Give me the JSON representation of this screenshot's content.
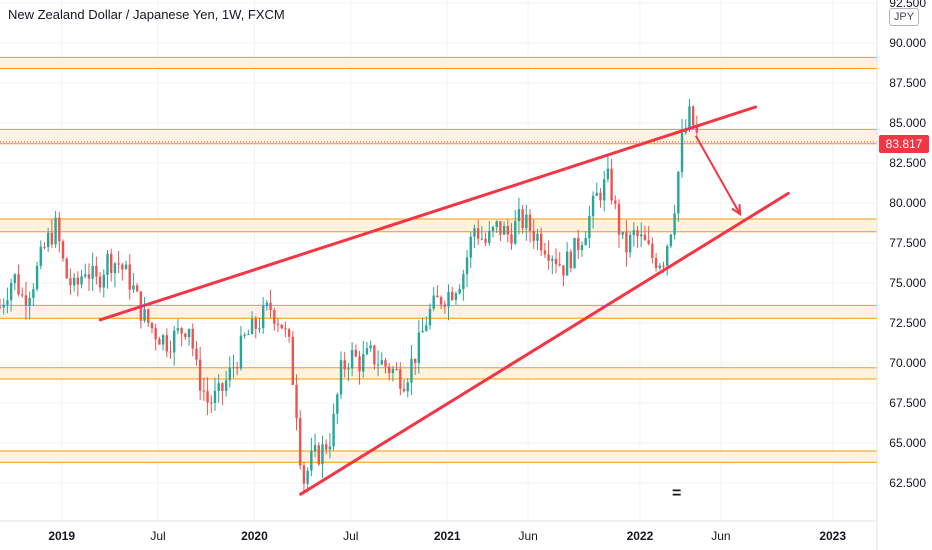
{
  "header": {
    "title": "New Zealand Dollar / Japanese Yen, 1W, FXCM",
    "currency": "JPY"
  },
  "colors": {
    "up": "#26a69a",
    "down": "#ef5350",
    "zone_fill": "#fff3e0",
    "zone_line": "#ff9800",
    "trendline": "#f23645",
    "price_tag": "#f23645",
    "axis_text": "#131722"
  },
  "annotations": {
    "bottom_marker": "="
  },
  "chart_data": {
    "type": "candlestick",
    "symbol": "NZDJPY",
    "interval": "1W",
    "ylim": [
      60.0,
      92.5
    ],
    "xlim": [
      2018.68,
      2023.23
    ],
    "y_ticks": [
      "92.500",
      "90.000",
      "87.500",
      "85.000",
      "83.817",
      "82.500",
      "80.000",
      "77.500",
      "75.000",
      "72.500",
      "70.000",
      "67.500",
      "65.000",
      "62.500"
    ],
    "x_ticks": [
      {
        "label": "2019",
        "x": 2019.0
      },
      {
        "label": "Jul",
        "x": 2019.5
      },
      {
        "label": "2020",
        "x": 2020.0
      },
      {
        "label": "Jul",
        "x": 2020.5
      },
      {
        "label": "2021",
        "x": 2021.0
      },
      {
        "label": "Jun",
        "x": 2021.42
      },
      {
        "label": "2022",
        "x": 2022.0
      },
      {
        "label": "Jun",
        "x": 2022.42
      },
      {
        "label": "2023",
        "x": 2023.0
      }
    ],
    "last_price": 83.817,
    "price_path": [
      [
        2018.68,
        73.5
      ],
      [
        2018.75,
        75.5
      ],
      [
        2018.8,
        74.0
      ],
      [
        2018.85,
        75.0
      ],
      [
        2018.92,
        77.5
      ],
      [
        2018.97,
        78.5
      ],
      [
        2019.02,
        75.5
      ],
      [
        2019.07,
        74.5
      ],
      [
        2019.12,
        76.0
      ],
      [
        2019.18,
        75.0
      ],
      [
        2019.24,
        76.5
      ],
      [
        2019.3,
        76.2
      ],
      [
        2019.36,
        75.0
      ],
      [
        2019.42,
        73.0
      ],
      [
        2019.48,
        72.0
      ],
      [
        2019.55,
        71.3
      ],
      [
        2019.6,
        71.8
      ],
      [
        2019.66,
        72.5
      ],
      [
        2019.7,
        69.5
      ],
      [
        2019.76,
        67.5
      ],
      [
        2019.82,
        68.0
      ],
      [
        2019.88,
        69.5
      ],
      [
        2019.95,
        71.5
      ],
      [
        2020.02,
        72.5
      ],
      [
        2020.08,
        73.5
      ],
      [
        2020.14,
        72.5
      ],
      [
        2020.18,
        71.0
      ],
      [
        2020.22,
        67.0
      ],
      [
        2020.25,
        62.5
      ],
      [
        2020.3,
        64.0
      ],
      [
        2020.35,
        64.5
      ],
      [
        2020.4,
        65.5
      ],
      [
        2020.45,
        69.5
      ],
      [
        2020.5,
        70.5
      ],
      [
        2020.55,
        70.0
      ],
      [
        2020.6,
        70.5
      ],
      [
        2020.66,
        70.0
      ],
      [
        2020.72,
        69.5
      ],
      [
        2020.78,
        69.0
      ],
      [
        2020.85,
        71.0
      ],
      [
        2020.9,
        73.0
      ],
      [
        2020.96,
        74.0
      ],
      [
        2021.02,
        74.5
      ],
      [
        2021.08,
        75.5
      ],
      [
        2021.14,
        78.5
      ],
      [
        2021.2,
        77.5
      ],
      [
        2021.26,
        78.5
      ],
      [
        2021.32,
        78.0
      ],
      [
        2021.38,
        79.0
      ],
      [
        2021.42,
        78.5
      ],
      [
        2021.48,
        77.8
      ],
      [
        2021.54,
        77.0
      ],
      [
        2021.6,
        76.0
      ],
      [
        2021.66,
        77.0
      ],
      [
        2021.72,
        78.5
      ],
      [
        2021.78,
        80.5
      ],
      [
        2021.84,
        81.5
      ],
      [
        2021.88,
        79.0
      ],
      [
        2021.92,
        77.0
      ],
      [
        2021.97,
        78.0
      ],
      [
        2022.02,
        77.5
      ],
      [
        2022.07,
        76.5
      ],
      [
        2022.12,
        76.5
      ],
      [
        2022.17,
        79.0
      ],
      [
        2022.22,
        84.0
      ],
      [
        2022.26,
        85.5
      ],
      [
        2022.3,
        84.0
      ]
    ],
    "resistance_zones": [
      [
        88.4,
        89.1
      ],
      [
        83.7,
        84.6
      ],
      [
        78.2,
        79.0
      ],
      [
        72.8,
        73.6
      ],
      [
        69.0,
        69.7
      ],
      [
        63.8,
        64.5
      ]
    ],
    "trendlines": [
      {
        "x": [
          2019.2,
          2022.6
        ],
        "y": [
          72.7,
          86.0
        ]
      },
      {
        "x": [
          2020.24,
          2022.77
        ],
        "y": [
          61.8,
          80.6
        ]
      }
    ],
    "forecast_arrow": {
      "x": [
        2022.29,
        2022.52
      ],
      "y": [
        84.2,
        79.3
      ]
    },
    "dashed_level": 83.817,
    "grid": true
  }
}
